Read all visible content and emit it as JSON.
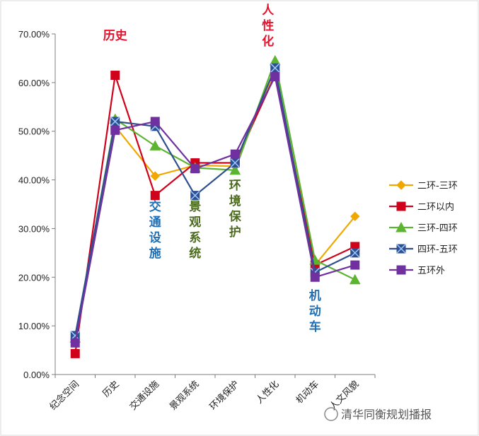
{
  "chart_data": {
    "type": "line",
    "title": "",
    "xlabel": "",
    "ylabel": "",
    "ylim": [
      0,
      70
    ],
    "yticks": [
      "0.00%",
      "10.00%",
      "20.00%",
      "30.00%",
      "40.00%",
      "50.00%",
      "60.00%",
      "70.00%"
    ],
    "categories": [
      "纪念空间",
      "历史",
      "交通设施",
      "景观系统",
      "环境保护",
      "人性化",
      "机动车",
      "人文风貌"
    ],
    "series": [
      {
        "name": "二环-三环",
        "color": "#f0a800",
        "marker": "diamond",
        "values": [
          7.0,
          51.0,
          40.8,
          43.0,
          42.8,
          62.5,
          22.5,
          32.5
        ]
      },
      {
        "name": "二环以内",
        "color": "#d0021b",
        "marker": "square",
        "values": [
          4.3,
          61.5,
          36.8,
          43.5,
          43.5,
          61.5,
          22.5,
          26.3
        ]
      },
      {
        "name": "三环-四环",
        "color": "#5cb531",
        "marker": "triangle",
        "values": [
          7.5,
          52.5,
          47.0,
          42.5,
          42.0,
          64.5,
          23.5,
          19.5
        ]
      },
      {
        "name": "四环-五环",
        "color": "#2f4f8f",
        "marker": "squarex",
        "values": [
          8.0,
          52.0,
          51.0,
          36.8,
          43.5,
          63.0,
          21.0,
          25.0
        ]
      },
      {
        "name": "五环外",
        "color": "#7030a0",
        "marker": "square",
        "values": [
          6.5,
          50.2,
          52.0,
          42.3,
          45.3,
          61.2,
          20.0,
          22.5
        ]
      }
    ],
    "legend": {
      "position": "right"
    },
    "annotations": [
      {
        "text": "历史",
        "category": "历史",
        "color": "#e8102a"
      },
      {
        "text": "人性化",
        "category": "人性化",
        "color": "#e8102a"
      },
      {
        "text": "交通设施",
        "category": "交通设施",
        "color": "#1f6fb5"
      },
      {
        "text": "景观系统",
        "category": "景观系统",
        "color": "#4d6b1f"
      },
      {
        "text": "环境保护",
        "category": "环境保护",
        "color": "#4d6b1f"
      },
      {
        "text": "机动车",
        "category": "机动车",
        "color": "#1f6fb5"
      }
    ],
    "grid": false
  },
  "watermark": "清华同衡规划播报"
}
